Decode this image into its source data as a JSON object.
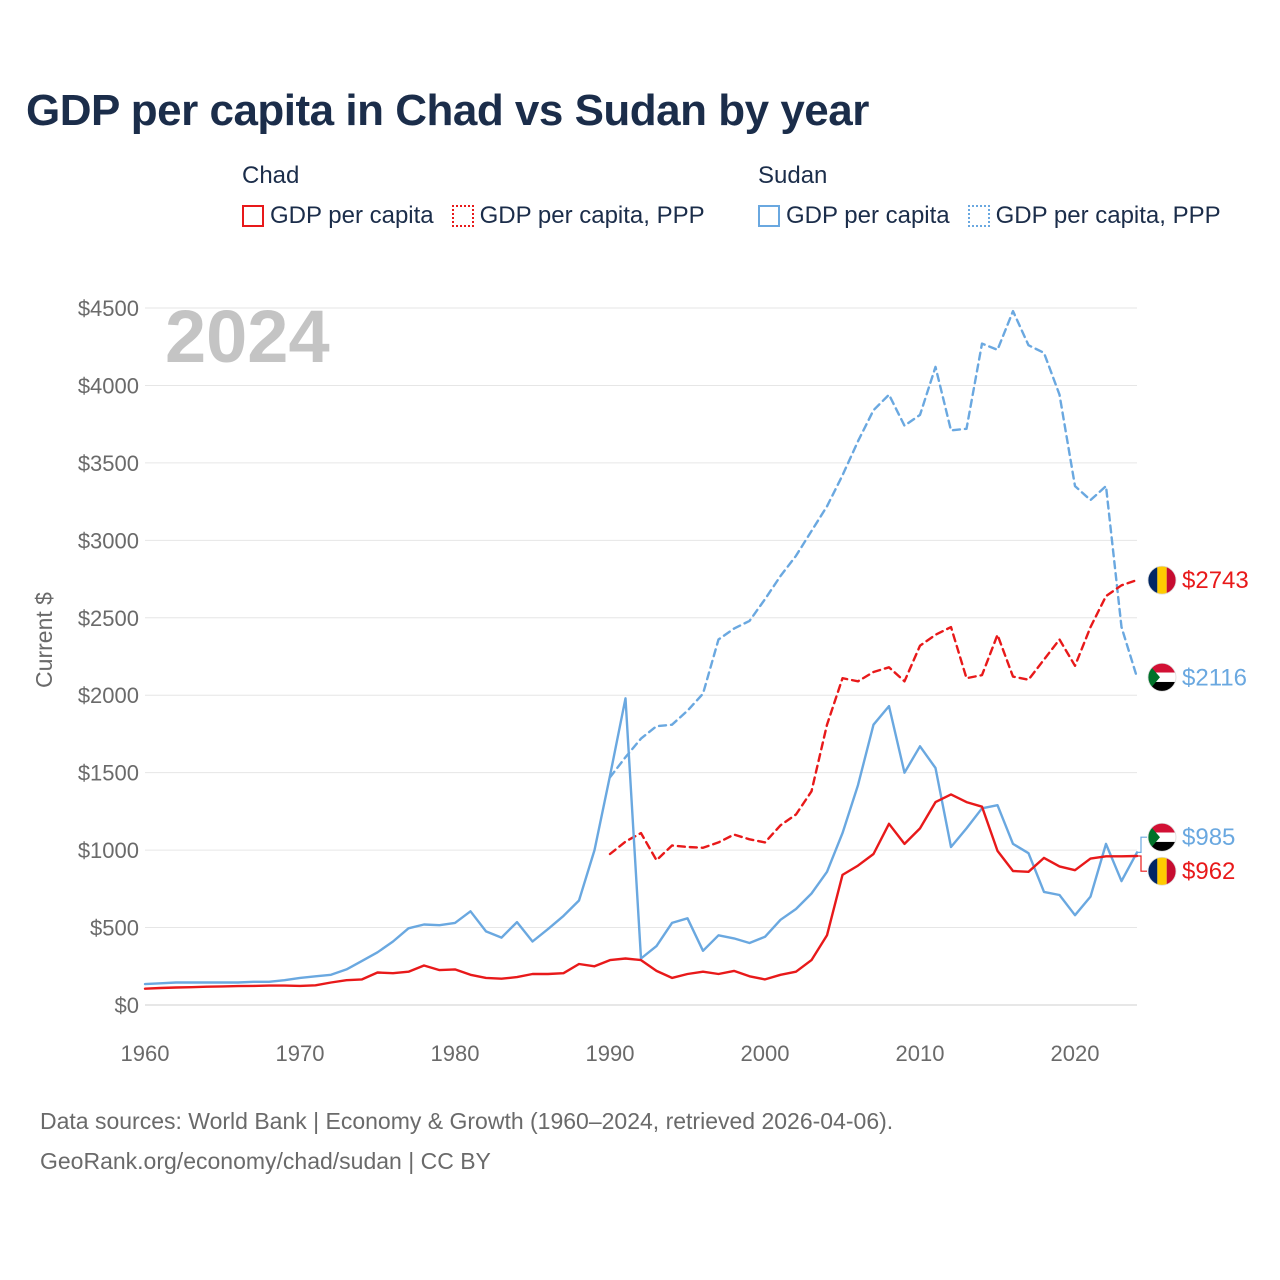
{
  "title": "GDP per capita in Chad vs Sudan by year",
  "legend": [
    {
      "country": "Chad",
      "items": [
        {
          "label": "GDP per capita",
          "color": "#e8191a",
          "style": "solid"
        },
        {
          "label": "GDP per capita, PPP",
          "color": "#e8191a",
          "style": "dotted"
        }
      ]
    },
    {
      "country": "Sudan",
      "items": [
        {
          "label": "GDP per capita",
          "color": "#6aa8e0",
          "style": "solid"
        },
        {
          "label": "GDP per capita, PPP",
          "color": "#6aa8e0",
          "style": "dotted"
        }
      ]
    }
  ],
  "year_label": "2024",
  "footer": {
    "line1": "Data sources: World Bank | Economy & Growth (1960–2024, retrieved 2026-04-06).",
    "line2": "GeoRank.org/economy/chad/sudan | CC BY"
  },
  "chart_data": {
    "type": "line",
    "title": "GDP per capita in Chad vs Sudan by year",
    "xlabel": "",
    "ylabel": "Current $",
    "xlim": [
      1960,
      2024
    ],
    "ylim": [
      0,
      4500
    ],
    "x_ticks": [
      1960,
      1970,
      1980,
      1990,
      2000,
      2010,
      2020
    ],
    "y_ticks": [
      0,
      500,
      1000,
      1500,
      2000,
      2500,
      3000,
      3500,
      4000,
      4500
    ],
    "y_tick_labels": [
      "$0",
      "$500",
      "$1000",
      "$1500",
      "$2000",
      "$2500",
      "$3000",
      "$3500",
      "$4000",
      "$4500"
    ],
    "grid": true,
    "series": [
      {
        "name": "Sudan GDP per capita, PPP",
        "color": "#6aa8e0",
        "dash": "dashed",
        "start_year": 1990,
        "values": [
          1470,
          1600,
          1720,
          1800,
          1810,
          1900,
          2010,
          2360,
          2430,
          2480,
          2620,
          2770,
          2900,
          3060,
          3220,
          3420,
          3640,
          3840,
          3940,
          3740,
          3810,
          4120,
          3710,
          3720,
          4270,
          4230,
          4480,
          4260,
          4210,
          3940,
          3350,
          3260,
          3350,
          2440,
          2116
        ]
      },
      {
        "name": "Chad GDP per capita, PPP",
        "color": "#e8191a",
        "dash": "dashed",
        "start_year": 1990,
        "values": [
          975,
          1055,
          1110,
          935,
          1030,
          1020,
          1015,
          1050,
          1100,
          1070,
          1050,
          1160,
          1230,
          1380,
          1810,
          2110,
          2090,
          2150,
          2180,
          2090,
          2320,
          2390,
          2440,
          2110,
          2130,
          2390,
          2120,
          2100,
          2230,
          2360,
          2190,
          2440,
          2640,
          2710,
          2743
        ]
      },
      {
        "name": "Sudan GDP per capita",
        "color": "#6aa8e0",
        "dash": "solid",
        "start_year": 1960,
        "values": [
          135,
          140,
          145,
          145,
          145,
          145,
          145,
          150,
          150,
          160,
          175,
          185,
          195,
          230,
          285,
          340,
          410,
          495,
          520,
          515,
          530,
          605,
          475,
          435,
          535,
          410,
          490,
          575,
          675,
          1000,
          1480,
          1980,
          300,
          380,
          530,
          560,
          350,
          450,
          430,
          400,
          440,
          550,
          620,
          720,
          860,
          1110,
          1420,
          1810,
          1930,
          1500,
          1670,
          1530,
          1020,
          1140,
          1270,
          1290,
          1040,
          980,
          730,
          710,
          580,
          700,
          1040,
          800,
          985
        ]
      },
      {
        "name": "Chad GDP per capita",
        "color": "#e8191a",
        "dash": "solid",
        "start_year": 1960,
        "values": [
          105,
          110,
          113,
          115,
          118,
          120,
          122,
          123,
          125,
          125,
          123,
          127,
          145,
          160,
          165,
          210,
          205,
          215,
          255,
          225,
          230,
          195,
          175,
          170,
          180,
          200,
          200,
          205,
          265,
          250,
          290,
          300,
          290,
          220,
          175,
          200,
          215,
          200,
          220,
          185,
          165,
          195,
          215,
          290,
          450,
          840,
          900,
          975,
          1170,
          1040,
          1140,
          1310,
          1360,
          1310,
          1280,
          995,
          865,
          860,
          950,
          895,
          870,
          945,
          960,
          960,
          962
        ]
      }
    ],
    "end_labels": [
      {
        "series": "Chad GDP per capita, PPP",
        "text": "$2743",
        "flag": "chad"
      },
      {
        "series": "Sudan GDP per capita, PPP",
        "text": "$2116",
        "flag": "sudan"
      },
      {
        "series": "Sudan GDP per capita",
        "text": "$985",
        "flag": "sudan"
      },
      {
        "series": "Chad GDP per capita",
        "text": "$962",
        "flag": "chad"
      }
    ]
  }
}
